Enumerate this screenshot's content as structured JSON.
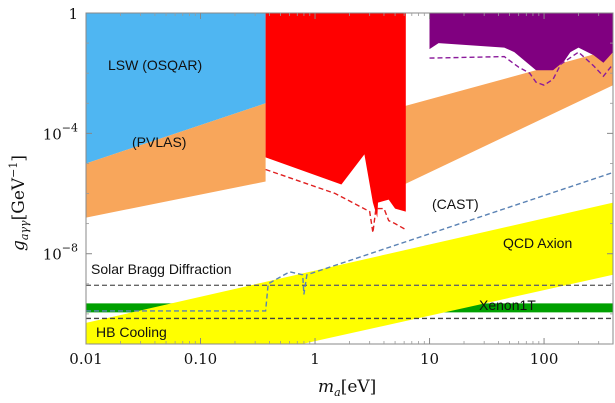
{
  "chart_data": {
    "type": "area",
    "title": "",
    "x_axis": {
      "label_main": "m",
      "label_sub": "a",
      "label_unit": "[eV]",
      "scale": "log",
      "range": [
        0.01,
        400
      ],
      "ticks": [
        {
          "value": 0.01,
          "label": "0.01"
        },
        {
          "value": 0.1,
          "label": "0.10"
        },
        {
          "value": 1,
          "label": "1"
        },
        {
          "value": 10,
          "label": "10"
        },
        {
          "value": 100,
          "label": "100"
        }
      ]
    },
    "y_axis": {
      "label_main": "g",
      "label_sub": "aγγ",
      "label_unit_open": "[GeV",
      "label_unit_exp": "−1",
      "label_unit_close": "]",
      "scale": "log",
      "range_log10": [
        -11,
        0
      ],
      "ticks": [
        {
          "log10": 0,
          "base": "1",
          "exp": ""
        },
        {
          "log10": -4,
          "base": "10",
          "exp": "−4"
        },
        {
          "log10": -8,
          "base": "10",
          "exp": "−8"
        }
      ]
    },
    "grid": false,
    "regions": [
      {
        "name": "LSW (OSQAR)",
        "color": "#4fb6f2",
        "polygon": [
          [
            0.01,
            0
          ],
          [
            0.37,
            0
          ],
          [
            0.37,
            -3.0
          ],
          [
            0.01,
            -5.0
          ]
        ]
      },
      {
        "name": "(PVLAS)",
        "color": "#f8a65b",
        "polygon": [
          [
            0.01,
            -5.0
          ],
          [
            0.37,
            -3.0
          ],
          [
            0.37,
            -5.6
          ],
          [
            0.01,
            -6.8
          ]
        ]
      },
      {
        "name": "PVLAS extension",
        "color": "#f8a65b",
        "label": false,
        "polygon": [
          [
            6,
            -3.1
          ],
          [
            400,
            -1.2
          ],
          [
            400,
            -2.4
          ],
          [
            6,
            -5.7
          ]
        ]
      },
      {
        "name": "Red excluded region",
        "color": "#ff0000",
        "label": false,
        "polygon": [
          [
            0.37,
            0
          ],
          [
            6.2,
            0
          ],
          [
            6.2,
            -6.6
          ],
          [
            5.0,
            -6.5
          ],
          [
            4.4,
            -6.2
          ],
          [
            3.55,
            -6.3
          ],
          [
            3.5,
            -6.8
          ],
          [
            3.2,
            -6.3
          ],
          [
            2.7,
            -4.7
          ],
          [
            1.7,
            -5.7
          ],
          [
            0.37,
            -4.8
          ]
        ]
      },
      {
        "name": "Purple excluded region",
        "color": "#800080",
        "label": false,
        "polygon": [
          [
            10,
            0
          ],
          [
            400,
            0
          ],
          [
            400,
            -1.3
          ],
          [
            330,
            -1.65
          ],
          [
            270,
            -1.4
          ],
          [
            200,
            -1.15
          ],
          [
            170,
            -1.3
          ],
          [
            150,
            -1.6
          ],
          [
            120,
            -1.9
          ],
          [
            85,
            -1.9
          ],
          [
            55,
            -1.3
          ],
          [
            45,
            -1.15
          ],
          [
            12,
            -1.0
          ],
          [
            10,
            -1.2
          ]
        ]
      },
      {
        "name": "Xenon1T",
        "color": "#00a000",
        "polygon": [
          [
            0.01,
            -9.65
          ],
          [
            400,
            -9.65
          ],
          [
            400,
            -9.95
          ],
          [
            0.01,
            -9.95
          ]
        ]
      },
      {
        "name": "QCD Axion",
        "color": "#ffff00",
        "polygon": [
          [
            0.01,
            -10.3
          ],
          [
            400,
            -6.3
          ],
          [
            400,
            -8.7
          ],
          [
            0.01,
            -12.6
          ]
        ]
      }
    ],
    "lines": [
      {
        "name": "Solar Bragg Diffraction",
        "color": "#666666",
        "style": "dashed",
        "points": [
          [
            0.01,
            -9.05
          ],
          [
            400,
            -9.05
          ]
        ]
      },
      {
        "name": "HB Cooling",
        "color": "#444444",
        "style": "dashed",
        "points": [
          [
            0.01,
            -10.15
          ],
          [
            400,
            -10.15
          ]
        ]
      },
      {
        "name": "(CAST)",
        "color": "#5a82b4",
        "style": "dashed",
        "points": [
          [
            0.01,
            -9.9
          ],
          [
            0.37,
            -9.9
          ],
          [
            0.39,
            -9.0
          ],
          [
            0.6,
            -8.6
          ],
          [
            0.78,
            -8.7
          ],
          [
            0.8,
            -9.35
          ],
          [
            0.85,
            -8.7
          ],
          [
            400,
            -5.3
          ]
        ]
      },
      {
        "name": "Red projection",
        "color": "#e02020",
        "style": "dashed",
        "points": [
          [
            0.37,
            -5.2
          ],
          [
            1.5,
            -6.0
          ],
          [
            3.0,
            -6.6
          ],
          [
            3.2,
            -7.3
          ],
          [
            3.4,
            -6.5
          ],
          [
            4.0,
            -6.5
          ],
          [
            4.4,
            -6.9
          ],
          [
            5.0,
            -7.0
          ],
          [
            6.2,
            -7.2
          ]
        ]
      },
      {
        "name": "Purple projection",
        "color": "#8b1a9b",
        "style": "dashed",
        "points": [
          [
            10,
            -1.5
          ],
          [
            45,
            -1.45
          ],
          [
            60,
            -1.8
          ],
          [
            75,
            -2.0
          ],
          [
            85,
            -2.3
          ],
          [
            100,
            -2.4
          ],
          [
            120,
            -2.2
          ],
          [
            140,
            -1.7
          ],
          [
            200,
            -1.3
          ],
          [
            270,
            -1.75
          ],
          [
            330,
            -2.1
          ],
          [
            400,
            -1.7
          ]
        ]
      }
    ],
    "labels": {
      "lsw": "LSW (OSQAR)",
      "pvlas": "(PVLAS)",
      "cast": "(CAST)",
      "qcd": "QCD Axion",
      "solar": "Solar Bragg Diffraction",
      "xenon": "Xenon1T",
      "hb": "HB Cooling"
    }
  }
}
